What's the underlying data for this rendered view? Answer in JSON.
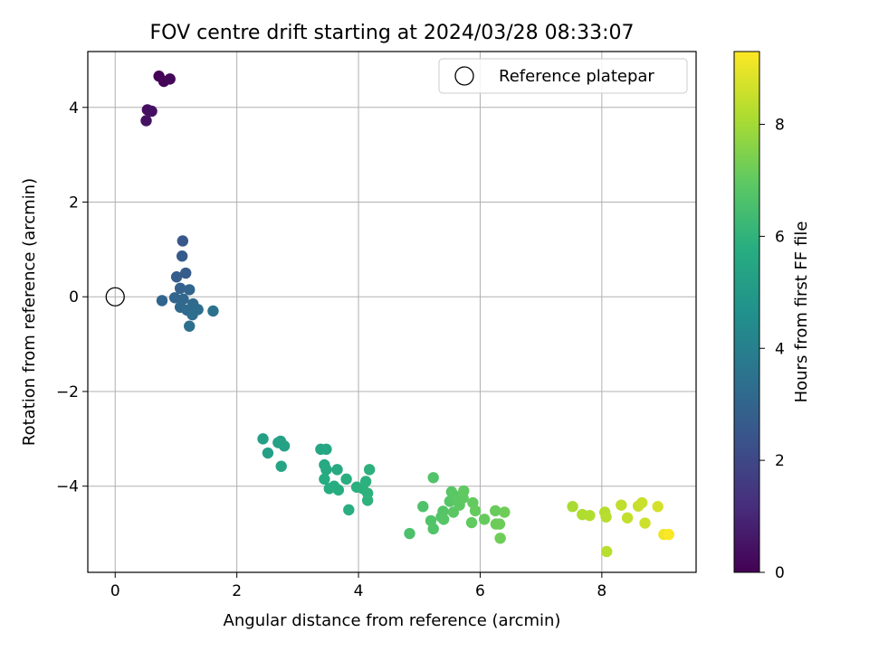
{
  "chart_data": {
    "type": "scatter",
    "title": "FOV centre drift starting at 2024/03/28 08:33:07",
    "xlabel": "Angular distance from reference (arcmin)",
    "ylabel": "Rotation from reference (arcmin)",
    "xlim": [
      -0.45,
      9.55
    ],
    "ylim": [
      -5.82,
      5.18
    ],
    "xticks": [
      0,
      2,
      4,
      6,
      8
    ],
    "yticks": [
      -4,
      -2,
      0,
      2,
      4
    ],
    "grid": true,
    "legend": {
      "position": "top-right",
      "entries": [
        {
          "label": "Reference platepar",
          "marker": "open-circle"
        }
      ]
    },
    "reference_point": {
      "x": 0,
      "y": 0
    },
    "colorbar": {
      "label": "Hours from first FF file",
      "range": [
        0,
        9.3
      ],
      "ticks": [
        0,
        2,
        4,
        6,
        8
      ],
      "colormap": "viridis"
    },
    "series": [
      {
        "values": [
          {
            "x": 0.72,
            "y": 4.66,
            "c": 0.05
          },
          {
            "x": 0.8,
            "y": 4.55,
            "c": 0.1
          },
          {
            "x": 0.9,
            "y": 4.6,
            "c": 0.15
          },
          {
            "x": 0.53,
            "y": 3.95,
            "c": 0.35
          },
          {
            "x": 0.6,
            "y": 3.92,
            "c": 0.4
          },
          {
            "x": 0.51,
            "y": 3.72,
            "c": 0.45
          },
          {
            "x": 1.11,
            "y": 1.18,
            "c": 2.5
          },
          {
            "x": 1.1,
            "y": 0.86,
            "c": 2.6
          },
          {
            "x": 1.16,
            "y": 0.5,
            "c": 2.7
          },
          {
            "x": 1.01,
            "y": 0.42,
            "c": 2.75
          },
          {
            "x": 1.07,
            "y": 0.18,
            "c": 2.9
          },
          {
            "x": 1.22,
            "y": 0.15,
            "c": 3.0
          },
          {
            "x": 0.77,
            "y": -0.08,
            "c": 3.0
          },
          {
            "x": 0.98,
            "y": -0.02,
            "c": 3.05
          },
          {
            "x": 1.12,
            "y": -0.05,
            "c": 3.1
          },
          {
            "x": 1.07,
            "y": -0.22,
            "c": 3.15
          },
          {
            "x": 1.28,
            "y": -0.15,
            "c": 3.2
          },
          {
            "x": 1.18,
            "y": -0.28,
            "c": 3.25
          },
          {
            "x": 1.36,
            "y": -0.27,
            "c": 3.3
          },
          {
            "x": 1.27,
            "y": -0.38,
            "c": 3.35
          },
          {
            "x": 1.22,
            "y": -0.62,
            "c": 3.4
          },
          {
            "x": 1.61,
            "y": -0.3,
            "c": 3.5
          },
          {
            "x": 2.43,
            "y": -3.0,
            "c": 5.2
          },
          {
            "x": 2.51,
            "y": -3.3,
            "c": 5.25
          },
          {
            "x": 2.68,
            "y": -3.08,
            "c": 5.3
          },
          {
            "x": 2.72,
            "y": -3.05,
            "c": 5.3
          },
          {
            "x": 2.78,
            "y": -3.15,
            "c": 5.35
          },
          {
            "x": 2.73,
            "y": -3.58,
            "c": 5.4
          },
          {
            "x": 3.38,
            "y": -3.22,
            "c": 5.5
          },
          {
            "x": 3.47,
            "y": -3.22,
            "c": 5.55
          },
          {
            "x": 3.44,
            "y": -3.55,
            "c": 5.6
          },
          {
            "x": 3.47,
            "y": -3.65,
            "c": 5.62
          },
          {
            "x": 3.65,
            "y": -3.65,
            "c": 5.65
          },
          {
            "x": 3.44,
            "y": -3.85,
            "c": 5.7
          },
          {
            "x": 3.52,
            "y": -4.05,
            "c": 5.72
          },
          {
            "x": 3.6,
            "y": -4.0,
            "c": 5.75
          },
          {
            "x": 3.67,
            "y": -4.08,
            "c": 5.78
          },
          {
            "x": 3.8,
            "y": -3.85,
            "c": 5.8
          },
          {
            "x": 3.84,
            "y": -4.5,
            "c": 5.82
          },
          {
            "x": 3.97,
            "y": -4.02,
            "c": 5.85
          },
          {
            "x": 4.07,
            "y": -4.05,
            "c": 5.88
          },
          {
            "x": 4.12,
            "y": -3.9,
            "c": 5.9
          },
          {
            "x": 4.18,
            "y": -3.65,
            "c": 5.92
          },
          {
            "x": 4.15,
            "y": -4.15,
            "c": 5.95
          },
          {
            "x": 4.15,
            "y": -4.3,
            "c": 5.98
          },
          {
            "x": 4.84,
            "y": -5.0,
            "c": 6.6
          },
          {
            "x": 5.06,
            "y": -4.43,
            "c": 6.65
          },
          {
            "x": 5.19,
            "y": -4.73,
            "c": 6.7
          },
          {
            "x": 5.23,
            "y": -4.9,
            "c": 6.7
          },
          {
            "x": 5.23,
            "y": -3.82,
            "c": 6.72
          },
          {
            "x": 5.36,
            "y": -4.65,
            "c": 6.75
          },
          {
            "x": 5.39,
            "y": -4.53,
            "c": 6.78
          },
          {
            "x": 5.4,
            "y": -4.7,
            "c": 6.8
          },
          {
            "x": 5.5,
            "y": -4.32,
            "c": 6.82
          },
          {
            "x": 5.53,
            "y": -4.12,
            "c": 6.85
          },
          {
            "x": 5.56,
            "y": -4.55,
            "c": 6.88
          },
          {
            "x": 5.58,
            "y": -4.2,
            "c": 6.9
          },
          {
            "x": 5.62,
            "y": -4.3,
            "c": 6.92
          },
          {
            "x": 5.66,
            "y": -4.4,
            "c": 6.95
          },
          {
            "x": 5.72,
            "y": -4.25,
            "c": 6.98
          },
          {
            "x": 5.73,
            "y": -4.1,
            "c": 7.0
          },
          {
            "x": 5.86,
            "y": -4.77,
            "c": 7.02
          },
          {
            "x": 5.88,
            "y": -4.35,
            "c": 7.05
          },
          {
            "x": 5.92,
            "y": -4.52,
            "c": 7.08
          },
          {
            "x": 6.07,
            "y": -4.7,
            "c": 7.1
          },
          {
            "x": 6.25,
            "y": -4.52,
            "c": 7.12
          },
          {
            "x": 6.26,
            "y": -4.8,
            "c": 7.15
          },
          {
            "x": 6.32,
            "y": -4.8,
            "c": 7.18
          },
          {
            "x": 6.33,
            "y": -5.1,
            "c": 7.2
          },
          {
            "x": 6.4,
            "y": -4.55,
            "c": 7.22
          },
          {
            "x": 7.52,
            "y": -4.43,
            "c": 8.1
          },
          {
            "x": 7.68,
            "y": -4.6,
            "c": 8.15
          },
          {
            "x": 7.8,
            "y": -4.62,
            "c": 8.2
          },
          {
            "x": 8.05,
            "y": -4.55,
            "c": 8.25
          },
          {
            "x": 8.07,
            "y": -4.65,
            "c": 8.28
          },
          {
            "x": 8.08,
            "y": -5.38,
            "c": 8.3
          },
          {
            "x": 8.32,
            "y": -4.4,
            "c": 8.4
          },
          {
            "x": 8.42,
            "y": -4.67,
            "c": 8.45
          },
          {
            "x": 8.6,
            "y": -4.42,
            "c": 8.5
          },
          {
            "x": 8.66,
            "y": -4.35,
            "c": 8.55
          },
          {
            "x": 8.71,
            "y": -4.78,
            "c": 8.6
          },
          {
            "x": 8.92,
            "y": -4.43,
            "c": 8.7
          },
          {
            "x": 9.02,
            "y": -5.02,
            "c": 9.1
          },
          {
            "x": 9.1,
            "y": -5.02,
            "c": 9.25
          }
        ]
      }
    ]
  }
}
